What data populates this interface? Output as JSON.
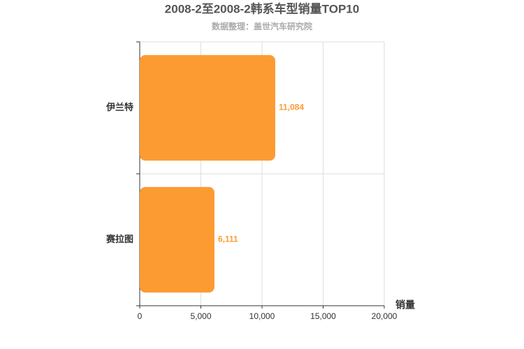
{
  "chart_data": {
    "type": "bar",
    "title": "2008-2至2008-2韩系车型销量TOP10",
    "subtitle": "数据整理：盖世汽车研究院",
    "categories": [
      "伊兰特",
      "赛拉图"
    ],
    "values": [
      11084,
      6111
    ],
    "value_labels": [
      "11,084",
      "6,111"
    ],
    "color": "#fd9b33",
    "x_label": "销量",
    "xlim": [
      0,
      20000
    ],
    "xticks": [
      0,
      {
        "value": 5000,
        "label": "5,000"
      },
      {
        "value": 10000,
        "label": "10,000"
      },
      {
        "value": 15000,
        "label": "15,000"
      },
      {
        "value": 20000,
        "label": "20,000"
      }
    ],
    "grid": true
  }
}
